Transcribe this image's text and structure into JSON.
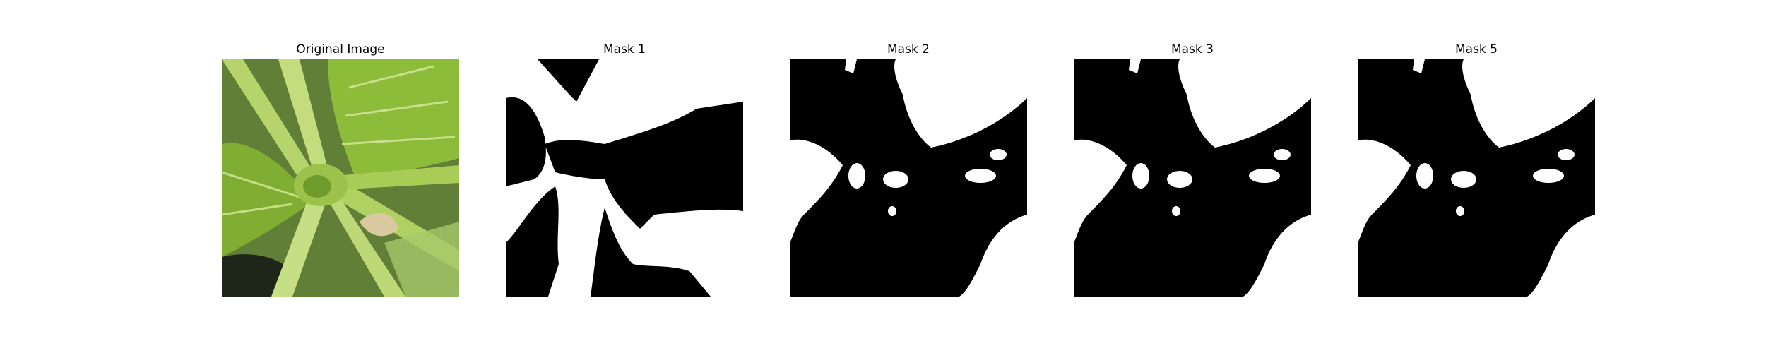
{
  "figure": {
    "panels": [
      {
        "title": "Original Image",
        "kind": "photo"
      },
      {
        "title": "Mask 1",
        "kind": "mask"
      },
      {
        "title": "Mask 2",
        "kind": "mask"
      },
      {
        "title": "Mask 3",
        "kind": "mask"
      },
      {
        "title": "Mask 5",
        "kind": "mask"
      }
    ]
  },
  "colors": {
    "background": "#ffffff",
    "mask_foreground": "#000000",
    "mask_background": "#ffffff",
    "leaf_green": "#9cc24a",
    "stem_green": "#b9d873",
    "shadow_dark": "#1f2a1a"
  }
}
